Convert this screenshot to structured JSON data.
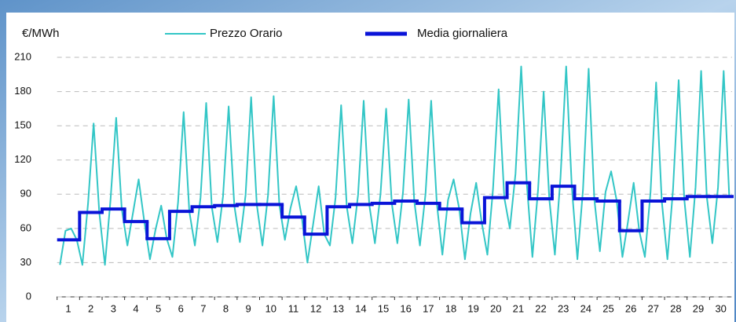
{
  "chart_data": {
    "type": "line",
    "ylabel": "€/MWh",
    "categories": [
      "1",
      "2",
      "3",
      "4",
      "5",
      "6",
      "7",
      "8",
      "9",
      "10",
      "11",
      "12",
      "13",
      "14",
      "15",
      "16",
      "17",
      "18",
      "19",
      "20",
      "21",
      "22",
      "23",
      "24",
      "25",
      "26",
      "27",
      "28",
      "29",
      "30"
    ],
    "xlim": [
      0.5,
      30.5
    ],
    "ylim": [
      0,
      210
    ],
    "yticks": [
      0,
      30,
      60,
      90,
      120,
      150,
      180,
      210
    ],
    "grid": true,
    "x": [
      0.625,
      0.875,
      1.125,
      1.375,
      1.625,
      1.875,
      2.125,
      2.375,
      2.625,
      2.875,
      3.125,
      3.375,
      3.625,
      3.875,
      4.125,
      4.375,
      4.625,
      4.875,
      5.125,
      5.375,
      5.625,
      5.875,
      6.125,
      6.375,
      6.625,
      6.875,
      7.125,
      7.375,
      7.625,
      7.875,
      8.125,
      8.375,
      8.625,
      8.875,
      9.125,
      9.375,
      9.625,
      9.875,
      10.125,
      10.375,
      10.625,
      10.875,
      11.125,
      11.375,
      11.625,
      11.875,
      12.125,
      12.375,
      12.625,
      12.875,
      13.125,
      13.375,
      13.625,
      13.875,
      14.125,
      14.375,
      14.625,
      14.875,
      15.125,
      15.375,
      15.625,
      15.875,
      16.125,
      16.375,
      16.625,
      16.875,
      17.125,
      17.375,
      17.625,
      17.875,
      18.125,
      18.375,
      18.625,
      18.875,
      19.125,
      19.375,
      19.625,
      19.875,
      20.125,
      20.375,
      20.625,
      20.875,
      21.125,
      21.375,
      21.625,
      21.875,
      22.125,
      22.375,
      22.625,
      22.875,
      23.125,
      23.375,
      23.625,
      23.875,
      24.125,
      24.375,
      24.625,
      24.875,
      25.125,
      25.375,
      25.625,
      25.875,
      26.125,
      26.375,
      26.625,
      26.875,
      27.125,
      27.375,
      27.625,
      27.875,
      28.125,
      28.375,
      28.625,
      28.875,
      29.125,
      29.375,
      29.625,
      29.875,
      30.125,
      30.375
    ],
    "series": [
      {
        "name": "Prezzo Orario",
        "color": "#33c6c6",
        "values": [
          28,
          58,
          60,
          50,
          28,
          82,
          152,
          74,
          28,
          85,
          157,
          77,
          45,
          74,
          103,
          66,
          33,
          59,
          80,
          51,
          35,
          83,
          162,
          75,
          45,
          87,
          170,
          79,
          48,
          88,
          167,
          80,
          48,
          89,
          175,
          81,
          45,
          89,
          176,
          81,
          50,
          78,
          97,
          70,
          30,
          63,
          97,
          55,
          45,
          87,
          168,
          79,
          47,
          89,
          172,
          81,
          47,
          90,
          165,
          82,
          47,
          92,
          173,
          84,
          45,
          90,
          172,
          82,
          37,
          85,
          103,
          77,
          33,
          73,
          100,
          65,
          37,
          95,
          182,
          87,
          60,
          108,
          202,
          100,
          35,
          94,
          180,
          86,
          37,
          105,
          202,
          97,
          33,
          94,
          200,
          86,
          40,
          92,
          110,
          84,
          35,
          66,
          100,
          58,
          35,
          92,
          188,
          84,
          33,
          94,
          190,
          86,
          35,
          96,
          198,
          88,
          47,
          96,
          198,
          88
        ]
      },
      {
        "name": "Media giornaliera",
        "color": "#0a14d8",
        "values": [
          50,
          74,
          77,
          66,
          51,
          75,
          79,
          80,
          81,
          81,
          70,
          55,
          79,
          81,
          82,
          84,
          82,
          77,
          65,
          87,
          100,
          86,
          97,
          86,
          84,
          58,
          84,
          86,
          88,
          88
        ]
      }
    ]
  }
}
